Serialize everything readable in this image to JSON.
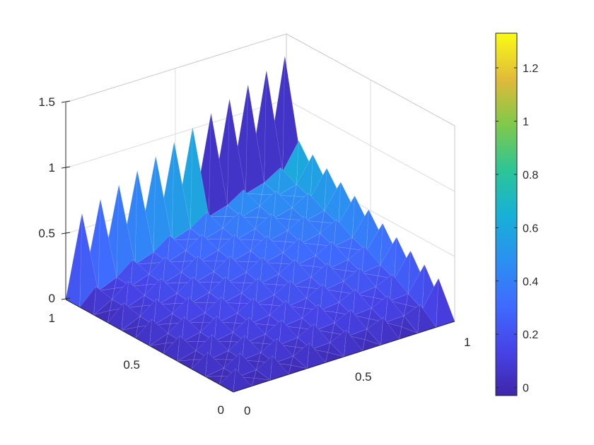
{
  "chart_data": {
    "type": "surface3d",
    "title": "",
    "xlabel": "",
    "ylabel": "",
    "zlabel": "",
    "xlim": [
      0,
      1
    ],
    "ylim": [
      0,
      1
    ],
    "zlim": [
      0,
      1.5
    ],
    "x_ticks": [
      "0",
      "0.5",
      "1"
    ],
    "y_ticks": [
      "0",
      "0.5",
      "1"
    ],
    "z_ticks": [
      "0",
      "0.5",
      "1",
      "1.5"
    ],
    "grid": true,
    "colormap": "parula",
    "colorbar": {
      "range": [
        -0.03,
        1.33
      ],
      "ticks": [
        "0",
        "0.2",
        "0.4",
        "0.6",
        "0.8",
        "1",
        "1.2"
      ],
      "tick_values": [
        0,
        0.2,
        0.4,
        0.6,
        0.8,
        1.0,
        1.2
      ],
      "placement": "right"
    },
    "grid_size": 12,
    "surface_description_values": {
      "boundary_spike_height_y1": 1.4,
      "boundary_spike_height_x1": 0.85,
      "surface_peak_near_corner": 0.65,
      "surface_at_origin": 0.05
    }
  }
}
